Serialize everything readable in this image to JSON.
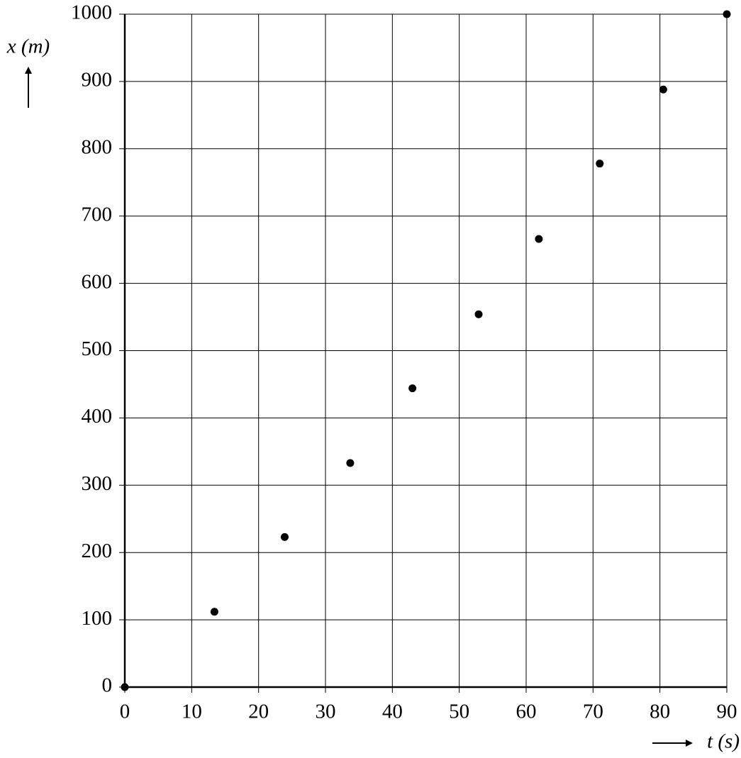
{
  "chart_data": {
    "type": "scatter",
    "x_label": "t (s)",
    "y_label": "x (m)",
    "x": [
      0,
      13.4,
      23.9,
      33.7,
      43.0,
      52.9,
      61.9,
      71.0,
      80.5,
      90
    ],
    "series": [
      {
        "color": "#000000",
        "values": [
          0,
          112,
          223,
          333,
          444,
          554,
          666,
          778,
          888,
          1000
        ]
      }
    ],
    "xlim": [
      0,
      90
    ],
    "ylim": [
      0,
      1000
    ],
    "xticks": [
      0,
      10,
      20,
      30,
      40,
      50,
      60,
      70,
      80,
      90
    ],
    "yticks": [
      0,
      100,
      200,
      300,
      400,
      500,
      600,
      700,
      800,
      900,
      1000
    ],
    "grid": true
  }
}
